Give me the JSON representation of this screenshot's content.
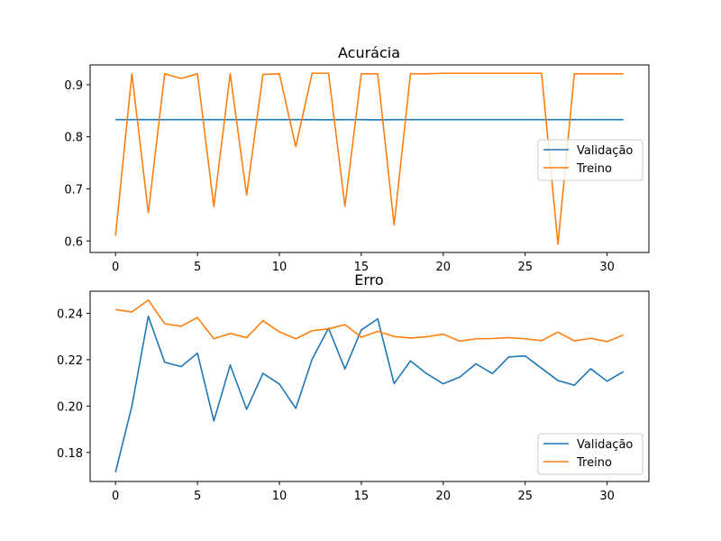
{
  "chart_data": [
    {
      "type": "line",
      "title": "Acurácia",
      "xlabel": "",
      "ylabel": "",
      "xlim": [
        -1.55,
        32.55
      ],
      "ylim": [
        0.578,
        0.938
      ],
      "xticks": [
        0,
        5,
        10,
        15,
        20,
        25,
        30
      ],
      "yticks": [
        0.6,
        0.7,
        0.8,
        0.9
      ],
      "ytick_labels": [
        "0.6",
        "0.7",
        "0.8",
        "0.9"
      ],
      "legend_position": "center-right",
      "x": [
        0,
        1,
        2,
        3,
        4,
        5,
        6,
        7,
        8,
        9,
        10,
        11,
        12,
        13,
        14,
        15,
        16,
        17,
        18,
        19,
        20,
        21,
        22,
        23,
        24,
        25,
        26,
        27,
        28,
        29,
        30,
        31
      ],
      "series": [
        {
          "name": "Validação",
          "color": "#1f77b4",
          "values": [
            0.833,
            0.833,
            0.833,
            0.833,
            0.833,
            0.833,
            0.833,
            0.833,
            0.833,
            0.833,
            0.833,
            0.833,
            0.833,
            0.8328,
            0.833,
            0.833,
            0.8325,
            0.833,
            0.833,
            0.833,
            0.833,
            0.833,
            0.833,
            0.833,
            0.833,
            0.833,
            0.833,
            0.833,
            0.833,
            0.833,
            0.833,
            0.833
          ]
        },
        {
          "name": "Treino",
          "color": "#ff7f0e",
          "values": [
            0.61,
            0.921,
            0.654,
            0.921,
            0.912,
            0.921,
            0.666,
            0.921,
            0.688,
            0.92,
            0.921,
            0.781,
            0.922,
            0.922,
            0.667,
            0.921,
            0.921,
            0.631,
            0.921,
            0.921,
            0.922,
            0.922,
            0.922,
            0.922,
            0.922,
            0.922,
            0.922,
            0.594,
            0.921,
            0.921,
            0.921,
            0.921
          ]
        }
      ]
    },
    {
      "type": "line",
      "title": "Erro",
      "xlabel": "",
      "ylabel": "",
      "xlim": [
        -1.55,
        32.55
      ],
      "ylim": [
        0.1675,
        0.2495
      ],
      "xticks": [
        0,
        5,
        10,
        15,
        20,
        25,
        30
      ],
      "yticks": [
        0.18,
        0.2,
        0.22,
        0.24
      ],
      "ytick_labels": [
        "0.18",
        "0.20",
        "0.22",
        "0.24"
      ],
      "legend_position": "lower-right",
      "x": [
        0,
        1,
        2,
        3,
        4,
        5,
        6,
        7,
        8,
        9,
        10,
        11,
        12,
        13,
        14,
        15,
        16,
        17,
        18,
        19,
        20,
        21,
        22,
        23,
        24,
        25,
        26,
        27,
        28,
        29,
        30,
        31
      ],
      "series": [
        {
          "name": "Validação",
          "color": "#1f77b4",
          "values": [
            0.1715,
            0.2,
            0.2387,
            0.2189,
            0.217,
            0.2228,
            0.1936,
            0.2177,
            0.1986,
            0.2141,
            0.2095,
            0.199,
            0.2202,
            0.2336,
            0.216,
            0.2328,
            0.2376,
            0.2097,
            0.2195,
            0.2139,
            0.2096,
            0.2125,
            0.2182,
            0.214,
            0.2212,
            0.2216,
            0.2163,
            0.211,
            0.209,
            0.2161,
            0.2107,
            0.2149
          ]
        },
        {
          "name": "Treino",
          "color": "#ff7f0e",
          "values": [
            0.2416,
            0.2406,
            0.2457,
            0.2355,
            0.2344,
            0.2382,
            0.229,
            0.2313,
            0.2295,
            0.2368,
            0.232,
            0.229,
            0.2325,
            0.2333,
            0.2351,
            0.2297,
            0.2322,
            0.23,
            0.2293,
            0.2299,
            0.231,
            0.228,
            0.229,
            0.2291,
            0.2295,
            0.229,
            0.2282,
            0.2319,
            0.2281,
            0.2292,
            0.2278,
            0.2307
          ]
        }
      ]
    }
  ]
}
